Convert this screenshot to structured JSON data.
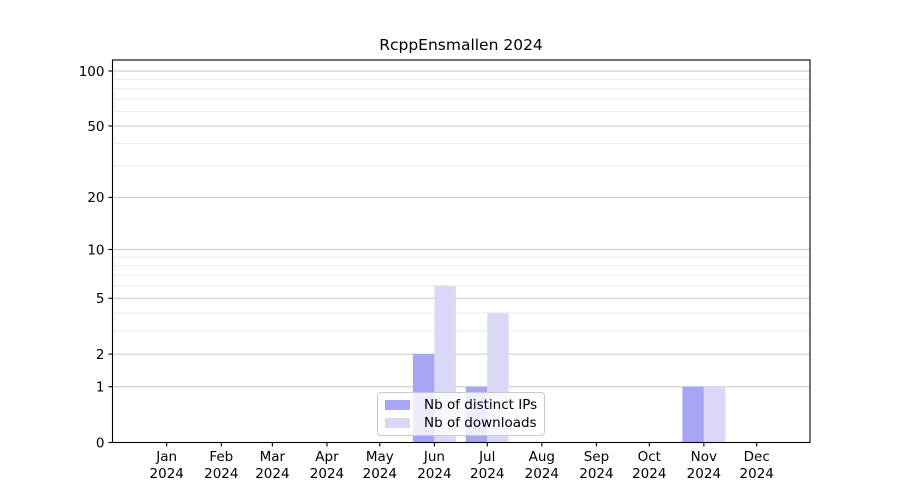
{
  "figure": {
    "background": "#ffffff"
  },
  "chart_data": {
    "type": "bar",
    "title": "RcppEnsmallen 2024",
    "categories": [
      "Jan",
      "Feb",
      "Mar",
      "Apr",
      "May",
      "Jun",
      "Jul",
      "Aug",
      "Sep",
      "Oct",
      "Nov",
      "Dec"
    ],
    "x_tick_year": "2024",
    "series": [
      {
        "name": "Nb of distinct IPs",
        "color": "#a6a6f2",
        "values": [
          0,
          0,
          0,
          0,
          0,
          2,
          1,
          0,
          0,
          0,
          1,
          0
        ]
      },
      {
        "name": "Nb of downloads",
        "color": "#d9d9f7",
        "values": [
          0,
          0,
          0,
          0,
          0,
          6,
          4,
          0,
          0,
          0,
          1,
          0
        ]
      }
    ],
    "y_axis": {
      "scale": "log1p",
      "major_ticks": [
        0,
        1,
        2,
        5,
        10,
        20,
        50,
        100
      ],
      "minor_gridlines": [
        3,
        4,
        6,
        7,
        8,
        9,
        30,
        40,
        60,
        70,
        80,
        90
      ],
      "ylim": [
        0,
        115
      ]
    },
    "grid": true,
    "legend_position": "lower center",
    "colors": {
      "major_grid": "#c6c6c6",
      "minor_grid": "#ebebeb",
      "spine": "#000000",
      "text": "#000000",
      "legend_border": "#c9c9c9"
    }
  }
}
